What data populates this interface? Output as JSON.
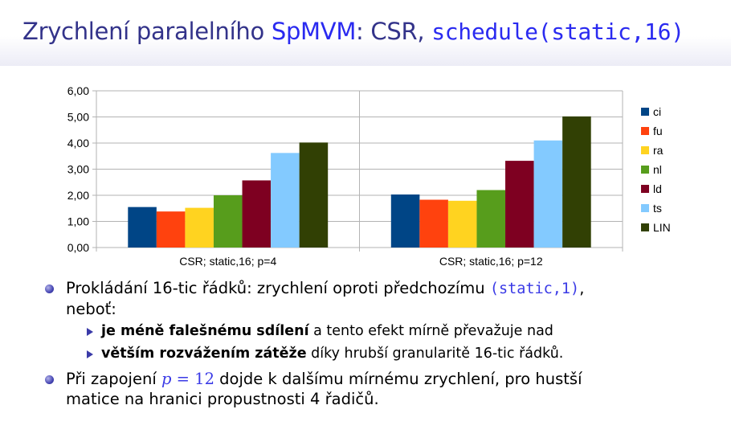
{
  "slide": {
    "title_prefix": "Zrychlení paralelního ",
    "title_spmvm": "SpMVM",
    "title_mid": ": CSR, ",
    "title_code": "schedule(static,16)"
  },
  "chart_data": {
    "type": "bar",
    "categories": [
      "CSR; static,16; p=4",
      "CSR; static,16; p=12"
    ],
    "series": [
      {
        "name": "ci",
        "color": "#004586",
        "values": [
          1.55,
          2.03
        ]
      },
      {
        "name": "fu",
        "color": "#ff420e",
        "values": [
          1.38,
          1.83
        ]
      },
      {
        "name": "ra",
        "color": "#ffd320",
        "values": [
          1.52,
          1.79
        ]
      },
      {
        "name": "nl",
        "color": "#579d1c",
        "values": [
          2.0,
          2.2
        ]
      },
      {
        "name": "ld",
        "color": "#7e0021",
        "values": [
          2.57,
          3.32
        ]
      },
      {
        "name": "ts",
        "color": "#83caff",
        "values": [
          3.62,
          4.1
        ]
      },
      {
        "name": "LIN",
        "color": "#314004",
        "values": [
          4.02,
          5.02
        ]
      }
    ],
    "ylim": [
      0,
      6
    ],
    "yticks": [
      "0,00",
      "1,00",
      "2,00",
      "3,00",
      "4,00",
      "5,00",
      "6,00"
    ],
    "grid": true,
    "legend": "right"
  },
  "bullets": {
    "b1_pre": "Prokládání 16-tic řádků: zrychlení oproti předchozímu ",
    "b1_code": "(static,1)",
    "b1_post": ",",
    "b1_line2": "neboť:",
    "s1_bold": "je méně falešnému sdílení",
    "s1_rest": " a tento efekt mírně převažuje nad",
    "s2_bold": "větším rozvážením zátěže",
    "s2_rest": " díky hrubší granularitě 16-tic řádků.",
    "b2_pre": "Při zapojení ",
    "b2_p": "p",
    "b2_eq": " = 12",
    "b2_post": " dojde k dalšímu mírnému zrychlení, pro hustší",
    "b2_line2": "matice na hranici propustnosti 4 řadičů."
  }
}
